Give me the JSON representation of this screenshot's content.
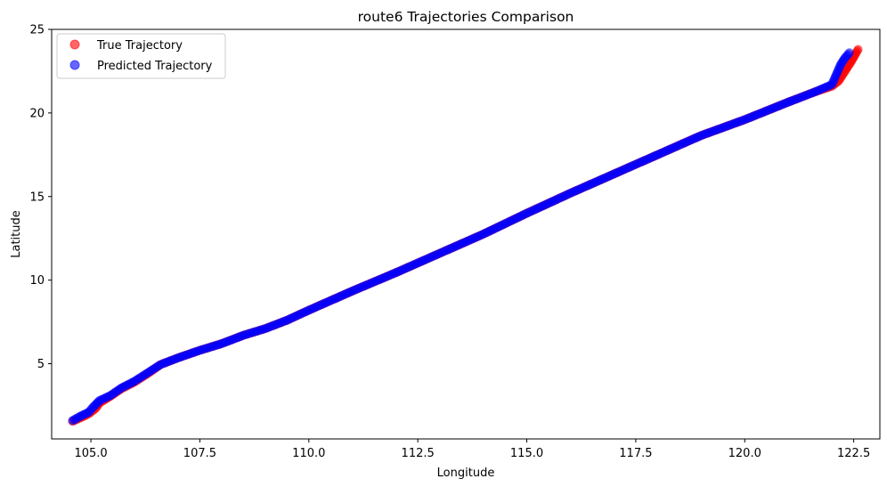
{
  "chart_data": {
    "type": "scatter",
    "title": "route6 Trajectories Comparison",
    "xlabel": "Longitude",
    "ylabel": "Latitude",
    "xlim": [
      104.1,
      123.1
    ],
    "ylim": [
      0.5,
      25
    ],
    "x_ticks": [
      "105.0",
      "107.5",
      "110.0",
      "112.5",
      "115.0",
      "117.5",
      "120.0",
      "122.5"
    ],
    "y_ticks": [
      "5",
      "10",
      "15",
      "20",
      "25"
    ],
    "grid": false,
    "legend_position": "top-left",
    "series": [
      {
        "name": "True Trajectory",
        "color": "#ff0000",
        "alpha": 0.6,
        "x": [
          104.58,
          104.75,
          104.95,
          105.1,
          105.2,
          105.45,
          105.7,
          106.0,
          106.3,
          106.6,
          107.0,
          107.5,
          108.0,
          108.5,
          109.0,
          109.5,
          110.0,
          111.0,
          112.0,
          113.0,
          114.0,
          115.0,
          116.0,
          117.0,
          118.0,
          119.0,
          120.0,
          121.0,
          121.6,
          122.0,
          122.15,
          122.3,
          122.45,
          122.6
        ],
        "y": [
          1.55,
          1.75,
          2.0,
          2.3,
          2.65,
          3.05,
          3.5,
          3.9,
          4.4,
          4.95,
          5.35,
          5.8,
          6.2,
          6.7,
          7.1,
          7.6,
          8.2,
          9.35,
          10.45,
          11.6,
          12.75,
          14.0,
          15.2,
          16.35,
          17.5,
          18.65,
          19.6,
          20.65,
          21.25,
          21.6,
          21.9,
          22.5,
          23.1,
          23.8
        ]
      },
      {
        "name": "Predicted Trajectory",
        "color": "#0000ff",
        "alpha": 0.6,
        "x": [
          104.58,
          104.75,
          104.95,
          105.05,
          105.2,
          105.45,
          105.7,
          106.0,
          106.3,
          106.6,
          107.0,
          107.5,
          108.0,
          108.5,
          109.0,
          109.5,
          110.0,
          111.0,
          112.0,
          113.0,
          114.0,
          115.0,
          116.0,
          117.0,
          118.0,
          119.0,
          120.0,
          121.0,
          121.6,
          122.0,
          122.1,
          122.2,
          122.3,
          122.4
        ],
        "y": [
          1.6,
          1.85,
          2.1,
          2.4,
          2.8,
          3.1,
          3.55,
          3.95,
          4.45,
          4.95,
          5.35,
          5.8,
          6.2,
          6.7,
          7.1,
          7.6,
          8.2,
          9.35,
          10.45,
          11.6,
          12.75,
          14.0,
          15.2,
          16.35,
          17.5,
          18.65,
          19.6,
          20.65,
          21.25,
          21.7,
          22.3,
          22.9,
          23.3,
          23.6
        ]
      }
    ]
  }
}
